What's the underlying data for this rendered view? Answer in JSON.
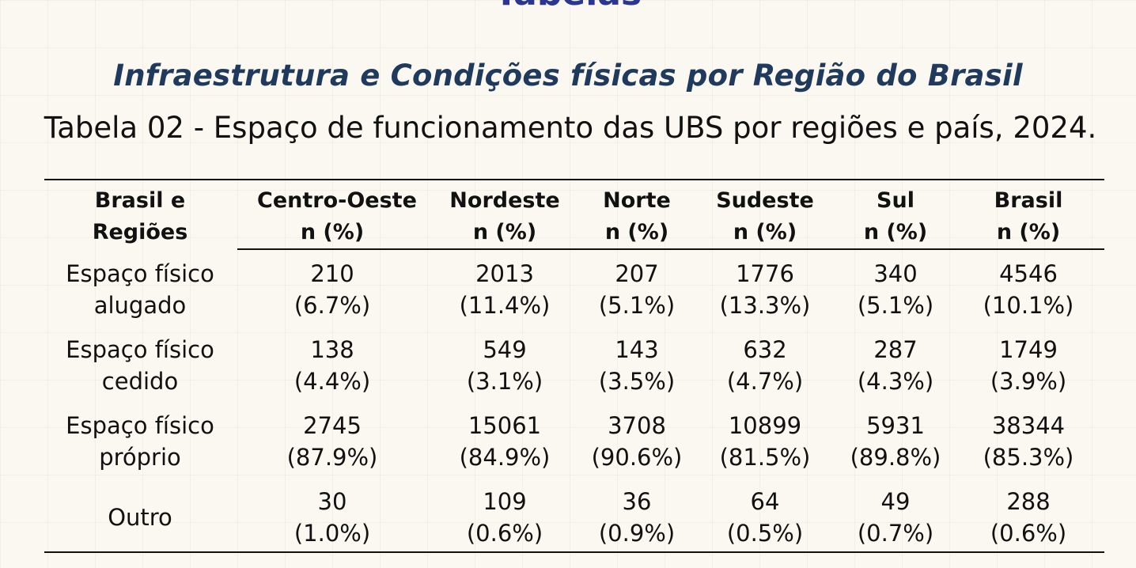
{
  "header": {
    "section_title": "Tabelas",
    "subtitle": "Infraestrutura e Condições físicas por Região do Brasil",
    "caption": "Tabela 02 - Espaço de funcionamento das UBS por regiões e país, 2024."
  },
  "table": {
    "stub_header": [
      "Brasil e",
      "Regiões"
    ],
    "columns": [
      {
        "name": "Centro-Oeste",
        "unit": "n (%)"
      },
      {
        "name": "Nordeste",
        "unit": "n (%)"
      },
      {
        "name": "Norte",
        "unit": "n (%)"
      },
      {
        "name": "Sudeste",
        "unit": "n (%)"
      },
      {
        "name": "Sul",
        "unit": "n (%)"
      },
      {
        "name": "Brasil",
        "unit": "n (%)"
      }
    ],
    "rows": [
      {
        "label": [
          "Espaço físico",
          "alugado"
        ],
        "cells": [
          {
            "n": "210",
            "pct": "(6.7%)"
          },
          {
            "n": "2013",
            "pct": "(11.4%)"
          },
          {
            "n": "207",
            "pct": "(5.1%)"
          },
          {
            "n": "1776",
            "pct": "(13.3%)"
          },
          {
            "n": "340",
            "pct": "(5.1%)"
          },
          {
            "n": "4546",
            "pct": "(10.1%)"
          }
        ]
      },
      {
        "label": [
          "Espaço físico",
          "cedido"
        ],
        "cells": [
          {
            "n": "138",
            "pct": "(4.4%)"
          },
          {
            "n": "549",
            "pct": "(3.1%)"
          },
          {
            "n": "143",
            "pct": "(3.5%)"
          },
          {
            "n": "632",
            "pct": "(4.7%)"
          },
          {
            "n": "287",
            "pct": "(4.3%)"
          },
          {
            "n": "1749",
            "pct": "(3.9%)"
          }
        ]
      },
      {
        "label": [
          "Espaço físico",
          "próprio"
        ],
        "cells": [
          {
            "n": "2745",
            "pct": "(87.9%)"
          },
          {
            "n": "15061",
            "pct": "(84.9%)"
          },
          {
            "n": "3708",
            "pct": "(90.6%)"
          },
          {
            "n": "10899",
            "pct": "(81.5%)"
          },
          {
            "n": "5931",
            "pct": "(89.8%)"
          },
          {
            "n": "38344",
            "pct": "(85.3%)"
          }
        ]
      },
      {
        "label": [
          "Outro"
        ],
        "cells": [
          {
            "n": "30",
            "pct": "(1.0%)"
          },
          {
            "n": "109",
            "pct": "(0.6%)"
          },
          {
            "n": "36",
            "pct": "(0.9%)"
          },
          {
            "n": "64",
            "pct": "(0.5%)"
          },
          {
            "n": "49",
            "pct": "(0.7%)"
          },
          {
            "n": "288",
            "pct": "(0.6%)"
          }
        ]
      }
    ]
  }
}
